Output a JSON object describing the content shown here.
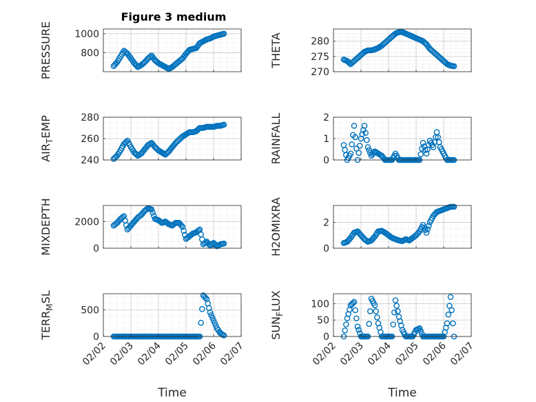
{
  "figure_title": "Figure 3 medium",
  "chart_data": [
    {
      "type": "scatter",
      "ylabel": "PRESSURE",
      "xlabel": "",
      "x_range": [
        "02/02",
        "02/07"
      ],
      "ylim": [
        600,
        1050
      ],
      "yticks": [
        800,
        1000
      ],
      "xticks": [
        "02/02",
        "02/03",
        "02/04",
        "02/05",
        "02/06",
        "02/07"
      ],
      "show_x_tick_labels": false,
      "grid": true,
      "series": [
        {
          "x": [
            "02/02 09:00",
            "02/02 12:00",
            "02/02 15:00",
            "02/02 18:00",
            "02/02 21:00",
            "02/03 00:00",
            "02/03 03:00",
            "02/03 06:00",
            "02/03 09:00",
            "02/03 12:00",
            "02/03 15:00",
            "02/03 18:00",
            "02/03 21:00",
            "02/04 00:00",
            "02/04 03:00",
            "02/04 06:00",
            "02/04 09:00",
            "02/04 12:00",
            "02/04 15:00",
            "02/04 18:00",
            "02/04 21:00",
            "02/05 00:00",
            "02/05 03:00",
            "02/05 06:00",
            "02/05 09:00",
            "02/05 12:00",
            "02/05 15:00",
            "02/05 18:00",
            "02/05 21:00",
            "02/06 00:00",
            "02/06 03:00",
            "02/06 06:00",
            "02/06 09:00"
          ],
          "y": [
            660,
            700,
            760,
            820,
            790,
            740,
            690,
            650,
            670,
            700,
            740,
            770,
            720,
            690,
            670,
            650,
            630,
            650,
            680,
            710,
            740,
            790,
            830,
            840,
            850,
            900,
            920,
            940,
            950,
            970,
            980,
            990,
            1000
          ]
        }
      ]
    },
    {
      "type": "scatter",
      "ylabel": "THETA",
      "xlabel": "",
      "x_range": [
        "02/02",
        "02/07"
      ],
      "ylim": [
        270,
        284
      ],
      "yticks": [
        270,
        275,
        280
      ],
      "xticks": [
        "02/02",
        "02/03",
        "02/04",
        "02/05",
        "02/06",
        "02/07"
      ],
      "show_x_tick_labels": false,
      "grid": true,
      "series": [
        {
          "x": [
            "02/02 09:00",
            "02/02 12:00",
            "02/02 15:00",
            "02/02 18:00",
            "02/02 21:00",
            "02/03 00:00",
            "02/03 03:00",
            "02/03 06:00",
            "02/03 09:00",
            "02/03 12:00",
            "02/03 15:00",
            "02/03 18:00",
            "02/03 21:00",
            "02/04 00:00",
            "02/04 03:00",
            "02/04 06:00",
            "02/04 09:00",
            "02/04 12:00",
            "02/04 15:00",
            "02/04 18:00",
            "02/04 21:00",
            "02/05 00:00",
            "02/05 03:00",
            "02/05 06:00",
            "02/05 09:00",
            "02/05 12:00",
            "02/05 15:00",
            "02/05 18:00",
            "02/05 21:00",
            "02/06 00:00",
            "02/06 03:00",
            "02/06 06:00",
            "02/06 09:00"
          ],
          "y": [
            274,
            273.5,
            272.5,
            273.5,
            274.5,
            275.5,
            276.5,
            277,
            277,
            277.3,
            277.8,
            278.5,
            279.5,
            280.5,
            281.5,
            282.5,
            283,
            283,
            282.5,
            282,
            281.5,
            281,
            280.5,
            280,
            279,
            277.5,
            276.5,
            275.5,
            274.5,
            273.5,
            272.5,
            272,
            271.8
          ]
        }
      ]
    },
    {
      "type": "scatter",
      "ylabel": "AIR_TEMP",
      "xlabel": "",
      "x_range": [
        "02/02",
        "02/07"
      ],
      "ylim": [
        240,
        280
      ],
      "yticks": [
        240,
        260,
        280
      ],
      "xticks": [
        "02/02",
        "02/03",
        "02/04",
        "02/05",
        "02/06",
        "02/07"
      ],
      "show_x_tick_labels": false,
      "grid": true,
      "series": [
        {
          "x": [
            "02/02 09:00",
            "02/02 12:00",
            "02/02 15:00",
            "02/02 18:00",
            "02/02 21:00",
            "02/03 00:00",
            "02/03 03:00",
            "02/03 06:00",
            "02/03 09:00",
            "02/03 12:00",
            "02/03 15:00",
            "02/03 18:00",
            "02/03 21:00",
            "02/04 00:00",
            "02/04 03:00",
            "02/04 06:00",
            "02/04 09:00",
            "02/04 12:00",
            "02/04 15:00",
            "02/04 18:00",
            "02/04 21:00",
            "02/05 00:00",
            "02/05 03:00",
            "02/05 06:00",
            "02/05 09:00",
            "02/05 12:00",
            "02/05 15:00",
            "02/05 18:00",
            "02/05 21:00",
            "02/06 00:00",
            "02/06 03:00",
            "02/06 06:00",
            "02/06 09:00"
          ],
          "y": [
            241,
            244,
            249,
            255,
            258,
            252,
            247,
            244,
            246,
            250,
            254,
            256,
            252,
            249,
            247,
            245,
            248,
            252,
            256,
            259,
            262,
            264,
            266,
            266,
            267,
            270,
            270,
            271,
            271,
            271,
            272,
            272,
            273
          ]
        }
      ]
    },
    {
      "type": "scatter",
      "ylabel": "RAINFALL",
      "xlabel": "",
      "x_range": [
        "02/02",
        "02/07"
      ],
      "ylim": [
        0,
        2
      ],
      "yticks": [
        0,
        1,
        2
      ],
      "xticks": [
        "02/02",
        "02/03",
        "02/04",
        "02/05",
        "02/06",
        "02/07"
      ],
      "show_x_tick_labels": false,
      "grid": true,
      "series": [
        {
          "x": [
            "02/02 09:00",
            "02/02 12:00",
            "02/02 15:00",
            "02/02 18:00",
            "02/02 21:00",
            "02/03 00:00",
            "02/03 03:00",
            "02/03 06:00",
            "02/03 09:00",
            "02/03 12:00",
            "02/03 15:00",
            "02/03 18:00",
            "02/03 21:00",
            "02/04 00:00",
            "02/04 03:00",
            "02/04 06:00",
            "02/04 09:00",
            "02/04 12:00",
            "02/04 15:00",
            "02/04 18:00",
            "02/04 21:00",
            "02/05 00:00",
            "02/05 03:00",
            "02/05 06:00",
            "02/05 09:00",
            "02/05 12:00",
            "02/05 15:00",
            "02/05 18:00",
            "02/05 21:00",
            "02/06 00:00",
            "02/06 03:00",
            "02/06 06:00",
            "02/06 09:00"
          ],
          "y": [
            0.7,
            0,
            0.3,
            1.6,
            0,
            1,
            1.6,
            0.6,
            0.2,
            0.4,
            0.3,
            0.2,
            0,
            0,
            0,
            0.3,
            0,
            0,
            0,
            0,
            0,
            0,
            0,
            0.8,
            0.3,
            0.9,
            0.6,
            1.3,
            0.6,
            0.3,
            0,
            0,
            0
          ]
        }
      ]
    },
    {
      "type": "scatter",
      "ylabel": "MIXDEPTH",
      "xlabel": "",
      "x_range": [
        "02/02",
        "02/07"
      ],
      "ylim": [
        0,
        3200
      ],
      "yticks": [
        0,
        2000
      ],
      "xticks": [
        "02/02",
        "02/03",
        "02/04",
        "02/05",
        "02/06",
        "02/07"
      ],
      "show_x_tick_labels": false,
      "grid": true,
      "series": [
        {
          "x": [
            "02/02 09:00",
            "02/02 12:00",
            "02/02 15:00",
            "02/02 18:00",
            "02/02 21:00",
            "02/03 00:00",
            "02/03 03:00",
            "02/03 06:00",
            "02/03 09:00",
            "02/03 12:00",
            "02/03 15:00",
            "02/03 18:00",
            "02/03 21:00",
            "02/04 00:00",
            "02/04 03:00",
            "02/04 06:00",
            "02/04 09:00",
            "02/04 12:00",
            "02/04 15:00",
            "02/04 18:00",
            "02/04 21:00",
            "02/05 00:00",
            "02/05 03:00",
            "02/05 06:00",
            "02/05 09:00",
            "02/05 12:00",
            "02/05 15:00",
            "02/05 18:00",
            "02/05 21:00",
            "02/06 00:00",
            "02/06 03:00",
            "02/06 06:00",
            "02/06 09:00"
          ],
          "y": [
            1700,
            1900,
            2200,
            2400,
            1400,
            1700,
            2000,
            2300,
            2500,
            2800,
            3000,
            2900,
            2200,
            2100,
            1900,
            2000,
            1800,
            1700,
            1900,
            1900,
            1600,
            700,
            900,
            1100,
            1200,
            1400,
            300,
            500,
            200,
            400,
            150,
            300,
            350
          ]
        }
      ]
    },
    {
      "type": "scatter",
      "ylabel": "H2OMIXRA",
      "xlabel": "",
      "x_range": [
        "02/02",
        "02/07"
      ],
      "ylim": [
        0,
        3.3
      ],
      "yticks": [
        0,
        2
      ],
      "xticks": [
        "02/02",
        "02/03",
        "02/04",
        "02/05",
        "02/06",
        "02/07"
      ],
      "show_x_tick_labels": false,
      "grid": true,
      "series": [
        {
          "x": [
            "02/02 09:00",
            "02/02 12:00",
            "02/02 15:00",
            "02/02 18:00",
            "02/02 21:00",
            "02/03 00:00",
            "02/03 03:00",
            "02/03 06:00",
            "02/03 09:00",
            "02/03 12:00",
            "02/03 15:00",
            "02/03 18:00",
            "02/03 21:00",
            "02/04 00:00",
            "02/04 03:00",
            "02/04 06:00",
            "02/04 09:00",
            "02/04 12:00",
            "02/04 15:00",
            "02/04 18:00",
            "02/04 21:00",
            "02/05 00:00",
            "02/05 03:00",
            "02/05 06:00",
            "02/05 09:00",
            "02/05 12:00",
            "02/05 15:00",
            "02/05 18:00",
            "02/05 21:00",
            "02/06 00:00",
            "02/06 03:00",
            "02/06 06:00",
            "02/06 09:00"
          ],
          "y": [
            0.4,
            0.5,
            0.8,
            1.2,
            1.3,
            1,
            0.7,
            0.5,
            0.6,
            0.9,
            1.3,
            1.35,
            1.2,
            1,
            0.8,
            0.7,
            0.6,
            0.55,
            0.7,
            0.6,
            0.8,
            1,
            1.3,
            1.8,
            1.2,
            2,
            2.5,
            2.8,
            2.9,
            3,
            3.1,
            3.2,
            3.2
          ]
        }
      ]
    },
    {
      "type": "scatter",
      "ylabel": "TERR_MSL",
      "xlabel": "Time",
      "x_range": [
        "02/02",
        "02/07"
      ],
      "ylim": [
        0,
        800
      ],
      "yticks": [
        0,
        500
      ],
      "xticks": [
        "02/02",
        "02/03",
        "02/04",
        "02/05",
        "02/06",
        "02/07"
      ],
      "show_x_tick_labels": true,
      "grid": true,
      "series": [
        {
          "x": [
            "02/02 09:00",
            "02/02 12:00",
            "02/02 15:00",
            "02/02 18:00",
            "02/02 21:00",
            "02/03 00:00",
            "02/03 03:00",
            "02/03 06:00",
            "02/03 09:00",
            "02/03 12:00",
            "02/03 15:00",
            "02/03 18:00",
            "02/03 21:00",
            "02/04 00:00",
            "02/04 03:00",
            "02/04 06:00",
            "02/04 09:00",
            "02/04 12:00",
            "02/04 15:00",
            "02/04 18:00",
            "02/04 21:00",
            "02/05 00:00",
            "02/05 03:00",
            "02/05 06:00",
            "02/05 09:00",
            "02/05 12:00",
            "02/05 15:00",
            "02/05 18:00",
            "02/05 21:00",
            "02/06 00:00",
            "02/06 03:00",
            "02/06 06:00",
            "02/06 09:00"
          ],
          "y": [
            0,
            0,
            0,
            0,
            0,
            0,
            0,
            0,
            0,
            0,
            0,
            0,
            0,
            0,
            0,
            0,
            0,
            0,
            0,
            0,
            0,
            0,
            0,
            0,
            0,
            0,
            770,
            700,
            450,
            300,
            150,
            60,
            20
          ]
        }
      ]
    },
    {
      "type": "scatter",
      "ylabel": "SUN_FLUX",
      "xlabel": "Time",
      "x_range": [
        "02/02",
        "02/07"
      ],
      "ylim": [
        0,
        130
      ],
      "yticks": [
        0,
        50,
        100
      ],
      "xticks": [
        "02/02",
        "02/03",
        "02/04",
        "02/05",
        "02/06",
        "02/07"
      ],
      "show_x_tick_labels": true,
      "grid": true,
      "series": [
        {
          "x": [
            "02/02 09:00",
            "02/02 12:00",
            "02/02 15:00",
            "02/02 18:00",
            "02/02 21:00",
            "02/03 00:00",
            "02/03 03:00",
            "02/03 06:00",
            "02/03 09:00",
            "02/03 12:00",
            "02/03 15:00",
            "02/03 18:00",
            "02/03 21:00",
            "02/04 00:00",
            "02/04 03:00",
            "02/04 06:00",
            "02/04 09:00",
            "02/04 12:00",
            "02/04 15:00",
            "02/04 18:00",
            "02/04 21:00",
            "02/05 00:00",
            "02/05 03:00",
            "02/05 06:00",
            "02/05 09:00",
            "02/05 12:00",
            "02/05 15:00",
            "02/05 18:00",
            "02/05 21:00",
            "02/06 00:00",
            "02/06 03:00",
            "02/06 06:00",
            "02/06 09:00"
          ],
          "y": [
            0,
            55,
            95,
            105,
            30,
            0,
            0,
            0,
            115,
            95,
            40,
            0,
            0,
            0,
            0,
            110,
            60,
            20,
            0,
            0,
            0,
            20,
            25,
            0,
            0,
            0,
            0,
            0,
            0,
            0,
            40,
            120,
            0
          ]
        }
      ]
    }
  ]
}
